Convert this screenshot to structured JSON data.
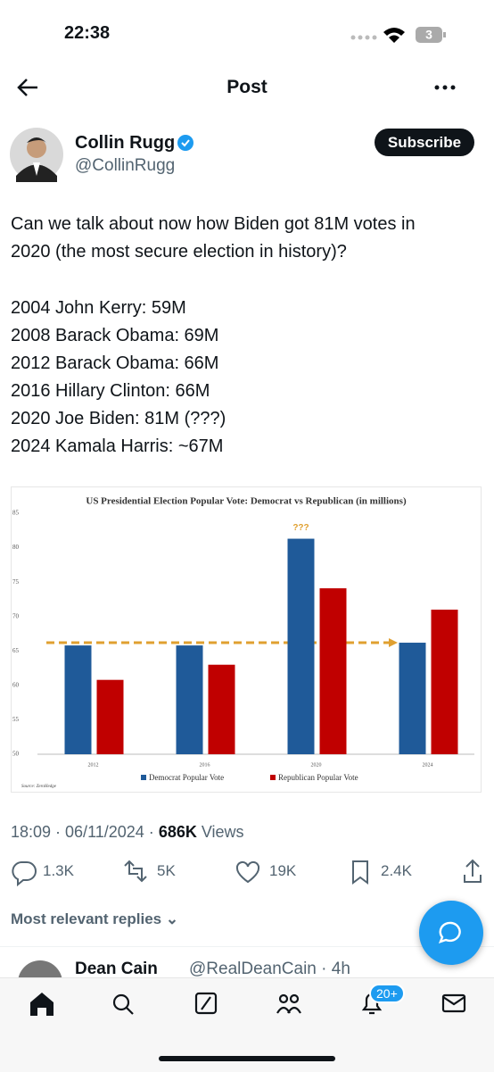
{
  "status_bar": {
    "time": "22:38",
    "battery": "3"
  },
  "header": {
    "title": "Post"
  },
  "post": {
    "author": {
      "name": "Collin Rugg",
      "handle": "@CollinRugg"
    },
    "subscribe": "Subscribe",
    "text": [
      "Can we talk about now how Biden got 81M votes in",
      "2020 (the most secure election in history)?",
      "2004 John Kerry: 59M",
      "2008 Barack Obama: 69M",
      "2012 Barack Obama: 66M",
      "2016 Hillary Clinton: 66M",
      "2020 Joe Biden: 81M (???)",
      "2024 Kamala Harris: ~67M"
    ],
    "meta": {
      "time": "18:09 · 06/11/2024 ·",
      "views": "686K",
      "views_label": "Views"
    },
    "actions": [
      "1.3K",
      "5K",
      "19K",
      "2.4K"
    ]
  },
  "chart_data": {
    "type": "bar",
    "title": "US Presidential Election Popular Vote: Democrat vs Republican (in millions)",
    "categories": [
      "2012",
      "2016",
      "2020",
      "2024"
    ],
    "series": [
      {
        "name": "Democrat Popular Vote",
        "color": "#1f5a99",
        "values": [
          65.8,
          65.8,
          81.3,
          66.2
        ]
      },
      {
        "name": "Republican Popular Vote",
        "color": "#c00000",
        "values": [
          60.8,
          63,
          74.1,
          71
        ]
      }
    ],
    "ylim": [
      50,
      85
    ],
    "yticks": [
      50,
      55,
      60,
      65,
      70,
      75,
      80,
      85
    ],
    "grid": false,
    "annotation": "???",
    "source": "Source: ZeroHedge"
  },
  "replies": {
    "sort": "Most relevant replies",
    "first": {
      "name": "Dean Cain",
      "handle": "@RealDeanCain · 4h"
    }
  },
  "nav": {
    "badge": "20+"
  }
}
